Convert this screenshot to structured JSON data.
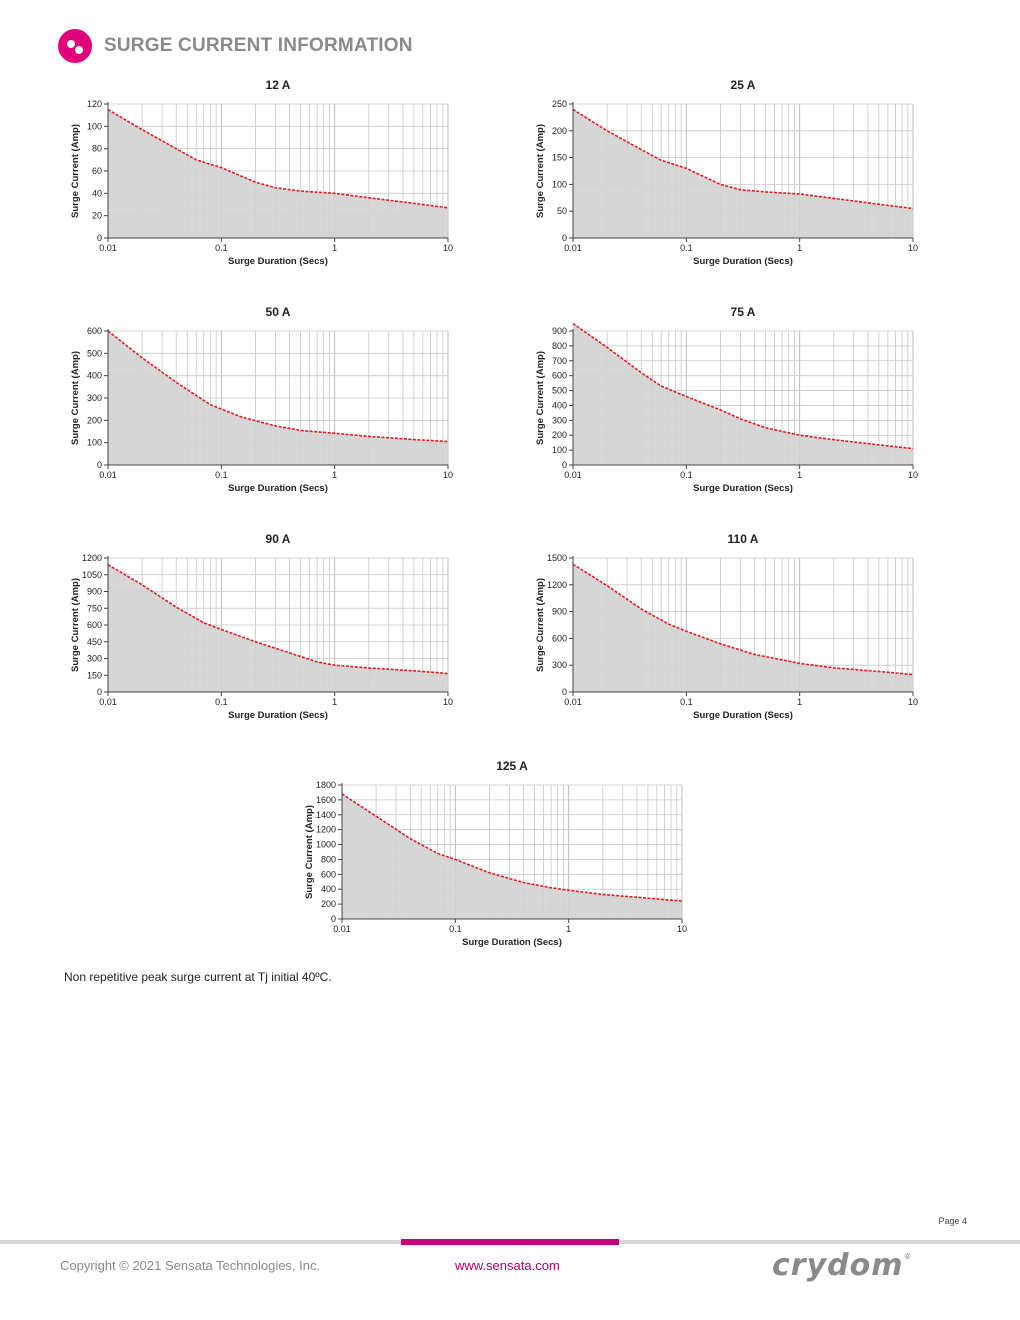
{
  "header": {
    "title": "SURGE CURRENT INFORMATION",
    "logo_icon": "pink-dot-logo-icon"
  },
  "chart_data": [
    {
      "type": "area",
      "title": "12 A",
      "xlabel": "Surge Duration (Secs)",
      "ylabel": "Surge Current (Amp)",
      "xscale": "log",
      "xlim": [
        0.01,
        10
      ],
      "xticks": [
        "0.01",
        "0.1",
        "1",
        "10"
      ],
      "ylim": [
        0,
        120
      ],
      "yticks": [
        0,
        20,
        40,
        60,
        80,
        100,
        120
      ],
      "x": [
        0.01,
        0.02,
        0.04,
        0.06,
        0.1,
        0.2,
        0.3,
        0.5,
        1,
        2,
        5,
        10
      ],
      "y": [
        115,
        97,
        80,
        70,
        63,
        50,
        45,
        42,
        40,
        36,
        31,
        27
      ]
    },
    {
      "type": "area",
      "title": "25 A",
      "xlabel": "Surge Duration (Secs)",
      "ylabel": "Surge Current (Amp)",
      "xscale": "log",
      "xlim": [
        0.01,
        10
      ],
      "xticks": [
        "0.01",
        "0.1",
        "1",
        "10"
      ],
      "ylim": [
        0,
        250
      ],
      "yticks": [
        0,
        50,
        100,
        150,
        200,
        250
      ],
      "x": [
        0.01,
        0.02,
        0.04,
        0.06,
        0.1,
        0.2,
        0.3,
        0.5,
        1,
        2,
        5,
        10
      ],
      "y": [
        240,
        200,
        165,
        145,
        130,
        100,
        90,
        86,
        82,
        74,
        63,
        55
      ]
    },
    {
      "type": "area",
      "title": "50 A",
      "xlabel": "Surge Duration (Secs)",
      "ylabel": "Surge Current (Amp)",
      "xscale": "log",
      "xlim": [
        0.01,
        10
      ],
      "xticks": [
        "0.01",
        "0.1",
        "1",
        "10"
      ],
      "ylim": [
        0,
        600
      ],
      "yticks": [
        0,
        100,
        200,
        300,
        400,
        500,
        600
      ],
      "x": [
        0.01,
        0.02,
        0.04,
        0.08,
        0.15,
        0.3,
        0.5,
        1,
        2,
        5,
        10
      ],
      "y": [
        600,
        480,
        370,
        270,
        215,
        175,
        155,
        142,
        128,
        114,
        105
      ]
    },
    {
      "type": "area",
      "title": "75 A",
      "xlabel": "Surge Duration (Secs)",
      "ylabel": "Surge Current (Amp)",
      "xscale": "log",
      "xlim": [
        0.01,
        10
      ],
      "xticks": [
        "0.01",
        "0.1",
        "1",
        "10"
      ],
      "ylim": [
        0,
        900
      ],
      "yticks": [
        0,
        100,
        200,
        300,
        400,
        500,
        600,
        700,
        800,
        900
      ],
      "x": [
        0.01,
        0.02,
        0.04,
        0.06,
        0.1,
        0.2,
        0.3,
        0.5,
        1,
        2,
        5,
        10
      ],
      "y": [
        950,
        790,
        620,
        530,
        460,
        370,
        310,
        250,
        200,
        170,
        135,
        110
      ]
    },
    {
      "type": "area",
      "title": "90 A",
      "xlabel": "Surge Duration (Secs)",
      "ylabel": "Surge Current (Amp)",
      "xscale": "log",
      "xlim": [
        0.01,
        10
      ],
      "xticks": [
        "0.01",
        "0.1",
        "1",
        "10"
      ],
      "ylim": [
        0,
        1200
      ],
      "yticks": [
        0,
        150,
        300,
        450,
        600,
        750,
        900,
        1050,
        1200
      ],
      "x": [
        0.01,
        0.02,
        0.04,
        0.07,
        0.1,
        0.2,
        0.4,
        0.7,
        1,
        2,
        5,
        10
      ],
      "y": [
        1140,
        960,
        760,
        620,
        560,
        450,
        350,
        270,
        240,
        215,
        190,
        165
      ]
    },
    {
      "type": "area",
      "title": "110 A",
      "xlabel": "Surge Duration (Secs)",
      "ylabel": "Surge Current (Amp)",
      "xscale": "log",
      "xlim": [
        0.01,
        10
      ],
      "xticks": [
        "0.01",
        "0.1",
        "1",
        "10"
      ],
      "ylim": [
        0,
        1500
      ],
      "yticks": [
        0,
        300,
        600,
        900,
        1200,
        1500
      ],
      "x": [
        0.01,
        0.02,
        0.04,
        0.07,
        0.1,
        0.2,
        0.4,
        0.7,
        1,
        2,
        5,
        10
      ],
      "y": [
        1430,
        1190,
        930,
        760,
        680,
        540,
        420,
        360,
        320,
        270,
        230,
        195
      ]
    },
    {
      "type": "area",
      "title": "125 A",
      "xlabel": "Surge Duration (Secs)",
      "ylabel": "Surge Current (Amp)",
      "xscale": "log",
      "xlim": [
        0.01,
        10
      ],
      "xticks": [
        "0.01",
        "0.1",
        "1",
        "10"
      ],
      "ylim": [
        0,
        1800
      ],
      "yticks": [
        0,
        200,
        400,
        600,
        800,
        1000,
        1200,
        1400,
        1600,
        1800
      ],
      "x": [
        0.01,
        0.02,
        0.04,
        0.07,
        0.1,
        0.2,
        0.4,
        0.7,
        1,
        2,
        5,
        10
      ],
      "y": [
        1680,
        1380,
        1080,
        880,
        800,
        620,
        490,
        420,
        385,
        330,
        280,
        240
      ]
    }
  ],
  "note": "Non repetitive peak surge current at Tj initial 40ºC.",
  "page_number": "Page 4",
  "footer": {
    "copyright": "Copyright © 2021 Sensata Technologies, Inc.",
    "website": "www.sensata.com",
    "brand": "crydom",
    "brand_mark": "®"
  }
}
